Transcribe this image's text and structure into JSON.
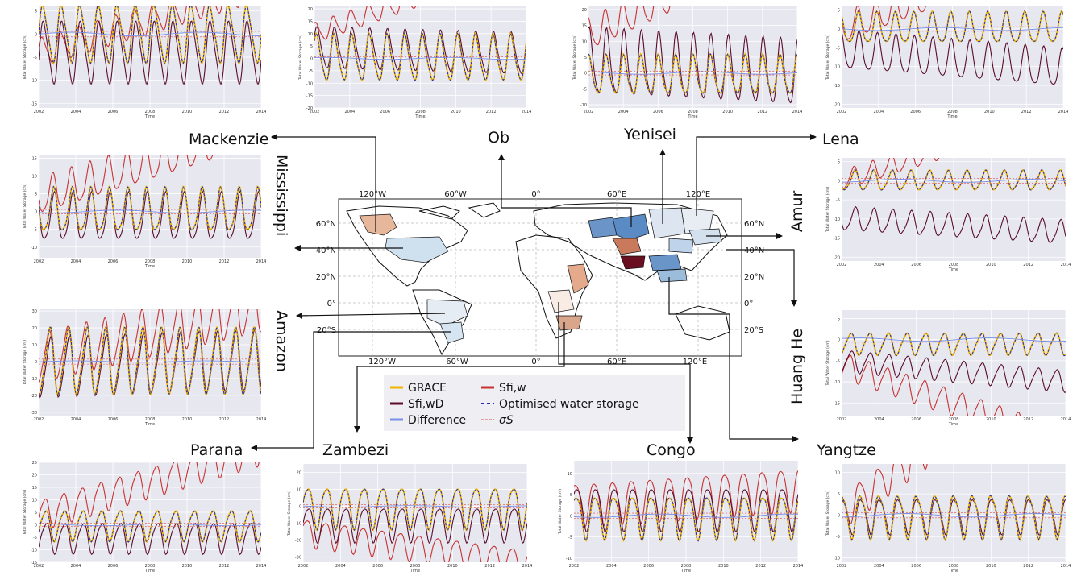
{
  "figure": {
    "axis_time_label": "Time",
    "axis_storage_label": "Total Water Storage (cm)",
    "x_ticks": [
      "2002",
      "2004",
      "2006",
      "2008",
      "2010",
      "2012",
      "2014"
    ]
  },
  "colors": {
    "grace": "#f0b400",
    "sfiw": "#c83232",
    "sfiwd": "#5a0d2a",
    "optimised": "#1f2fb4",
    "difference": "#7a8fe8",
    "sigma": "#e05050",
    "panel_bg": "#e6e7ef"
  },
  "legend": {
    "grace": "GRACE",
    "sfiw": "Sfi,w",
    "sfiwd": "Sfi,wD",
    "optimised": "Optimised water storage",
    "difference": "Difference",
    "sigma": "σS"
  },
  "map": {
    "top_lon_labels": [
      "120°W",
      "60°W",
      "0°",
      "60°E",
      "120°E"
    ],
    "bottom_lon_labels": [
      "120°W",
      "60°W",
      "0°",
      "60°E",
      "120°E"
    ],
    "left_lat_labels": [
      "60°N",
      "40°N",
      "20°N",
      "0°",
      "20°S"
    ],
    "right_lat_labels": [
      "60°N",
      "40°N",
      "20°N",
      "0°",
      "20°S"
    ]
  },
  "chart_data": [
    {
      "type": "line",
      "basin": "Mackenzie",
      "x_range": [
        2002,
        2014
      ],
      "yticks": [
        5,
        0,
        -5,
        -10,
        -15
      ],
      "ylim": [
        -16,
        6
      ],
      "series": [
        {
          "name": "GRACE"
        },
        {
          "name": "Sfi,w"
        },
        {
          "name": "Sfi,wD"
        },
        {
          "name": "Optimised water storage"
        },
        {
          "name": "Difference"
        },
        {
          "name": "σS"
        }
      ]
    },
    {
      "type": "line",
      "basin": "Ob",
      "x_range": [
        2002,
        2014
      ],
      "yticks": [
        20,
        15,
        10,
        5,
        0,
        -5,
        -10,
        -15,
        -20
      ],
      "ylim": [
        -20,
        21
      ],
      "series": [
        {
          "name": "GRACE"
        },
        {
          "name": "Sfi,w"
        },
        {
          "name": "Sfi,wD"
        },
        {
          "name": "Optimised water storage"
        },
        {
          "name": "Difference"
        },
        {
          "name": "σS"
        }
      ]
    },
    {
      "type": "line",
      "basin": "Yenisei",
      "x_range": [
        2002,
        2014
      ],
      "yticks": [
        20,
        15,
        10,
        5,
        0,
        -5,
        -10
      ],
      "ylim": [
        -11,
        21
      ],
      "series": [
        {
          "name": "GRACE"
        },
        {
          "name": "Sfi,w"
        },
        {
          "name": "Sfi,wD"
        },
        {
          "name": "Optimised water storage"
        },
        {
          "name": "Difference"
        },
        {
          "name": "σS"
        }
      ]
    },
    {
      "type": "line",
      "basin": "Lena",
      "x_range": [
        2002,
        2014
      ],
      "yticks": [
        5,
        0,
        -5,
        -10,
        -15,
        -20
      ],
      "ylim": [
        -21,
        6
      ],
      "series": [
        {
          "name": "GRACE"
        },
        {
          "name": "Sfi,w"
        },
        {
          "name": "Sfi,wD"
        },
        {
          "name": "Optimised water storage"
        },
        {
          "name": "Difference"
        },
        {
          "name": "σS"
        }
      ]
    },
    {
      "type": "line",
      "basin": "Mississippi",
      "x_range": [
        2002,
        2014
      ],
      "yticks": [
        15,
        10,
        5,
        0,
        -5,
        -10
      ],
      "ylim": [
        -13,
        16
      ],
      "series": [
        {
          "name": "GRACE"
        },
        {
          "name": "Sfi,w"
        },
        {
          "name": "Sfi,wD"
        },
        {
          "name": "Optimised water storage"
        },
        {
          "name": "Difference"
        },
        {
          "name": "σS"
        }
      ]
    },
    {
      "type": "line",
      "basin": "Amur",
      "x_range": [
        2002,
        2014
      ],
      "yticks": [
        5,
        0,
        -5,
        -10,
        -15,
        -20
      ],
      "ylim": [
        -21,
        6
      ],
      "series": [
        {
          "name": "GRACE"
        },
        {
          "name": "Sfi,w"
        },
        {
          "name": "Sfi,wD"
        },
        {
          "name": "Optimised water storage"
        },
        {
          "name": "Difference"
        },
        {
          "name": "σS"
        }
      ]
    },
    {
      "type": "line",
      "basin": "Amazon",
      "x_range": [
        2002,
        2014
      ],
      "yticks": [
        30,
        20,
        10,
        0,
        -10,
        -20,
        -30
      ],
      "ylim": [
        -32,
        31
      ],
      "series": [
        {
          "name": "GRACE"
        },
        {
          "name": "Sfi,w"
        },
        {
          "name": "Sfi,wD"
        },
        {
          "name": "Optimised water storage"
        },
        {
          "name": "Difference"
        },
        {
          "name": "σS"
        }
      ]
    },
    {
      "type": "line",
      "basin": "Huang He",
      "x_range": [
        2002,
        2014
      ],
      "yticks": [
        5,
        0,
        -5,
        -10,
        -15
      ],
      "ylim": [
        -18,
        7
      ],
      "series": [
        {
          "name": "GRACE"
        },
        {
          "name": "Sfi,w"
        },
        {
          "name": "Sfi,wD"
        },
        {
          "name": "Optimised water storage"
        },
        {
          "name": "Difference"
        },
        {
          "name": "σS"
        }
      ]
    },
    {
      "type": "line",
      "basin": "Parana",
      "x_range": [
        2002,
        2014
      ],
      "yticks": [
        25,
        20,
        15,
        10,
        5,
        0,
        -5,
        -10,
        -15
      ],
      "ylim": [
        -15,
        25
      ],
      "series": [
        {
          "name": "GRACE"
        },
        {
          "name": "Sfi,w"
        },
        {
          "name": "Sfi,wD"
        },
        {
          "name": "Optimised water storage"
        },
        {
          "name": "Difference"
        },
        {
          "name": "σS"
        }
      ]
    },
    {
      "type": "line",
      "basin": "Zambezi",
      "x_range": [
        2002,
        2014
      ],
      "yticks": [
        20,
        10,
        0,
        -10,
        -20,
        -30
      ],
      "ylim": [
        -33,
        25
      ],
      "series": [
        {
          "name": "GRACE"
        },
        {
          "name": "Sfi,w"
        },
        {
          "name": "Sfi,wD"
        },
        {
          "name": "Optimised water storage"
        },
        {
          "name": "Difference"
        },
        {
          "name": "σS"
        }
      ]
    },
    {
      "type": "line",
      "basin": "Congo",
      "x_range": [
        2002,
        2014
      ],
      "yticks": [
        10,
        5,
        0,
        -5,
        -10
      ],
      "ylim": [
        -11,
        13
      ],
      "series": [
        {
          "name": "GRACE"
        },
        {
          "name": "Sfi,w"
        },
        {
          "name": "Sfi,wD"
        },
        {
          "name": "Optimised water storage"
        },
        {
          "name": "Difference"
        },
        {
          "name": "σS"
        }
      ]
    },
    {
      "type": "line",
      "basin": "Yangtze",
      "x_range": [
        2002,
        2014
      ],
      "yticks": [
        10,
        5,
        0,
        -5,
        -10
      ],
      "ylim": [
        -11,
        12
      ],
      "series": [
        {
          "name": "GRACE"
        },
        {
          "name": "Sfi,w"
        },
        {
          "name": "Sfi,wD"
        },
        {
          "name": "Optimised water storage"
        },
        {
          "name": "Difference"
        },
        {
          "name": "σS"
        }
      ]
    }
  ]
}
